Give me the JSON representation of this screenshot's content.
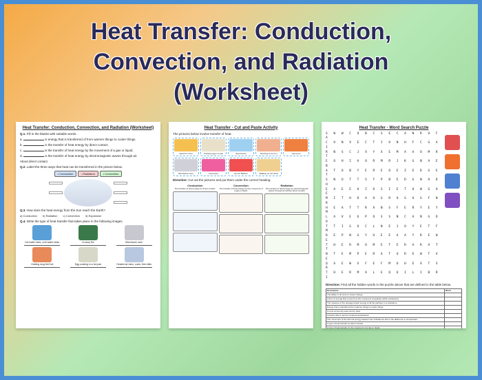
{
  "title_line1": "Heat Transfer: Conduction,",
  "title_line2": "Convection, and Radiation",
  "title_line3": "(Worksheet)",
  "colors": {
    "border": "#4a8fd4",
    "title_text": "#2a2a5a"
  },
  "sheet1": {
    "title": "Heat Transfer: Conduction, Convection, and Radiation (Worksheet)",
    "q1_label": "Q.1.",
    "q1_text": "Fill in the blanks with suitable words.",
    "q1_items": [
      "is energy that is transferred of from warmer things to cooler things.",
      "is the transfer of heat energy by direct contact.",
      "is the transfer of heat energy by the movement of a gas or liquid.",
      "is the transfer of heat energy by electromagnetic waves through air."
    ],
    "about": "About direct contact.",
    "q2_label": "Q.2.",
    "q2_text": "Label the three ways that heat can be transferred in the picture below.",
    "q2_boxes": [
      "Conduction",
      "Radiation",
      "Convection"
    ],
    "q3_label": "Q.3.",
    "q3_text": "How does the heat energy from the Sun reach the Earth?",
    "q3_options": [
      "a) Conduction",
      "b) Radiation",
      "c) Convection",
      "d) Expansion"
    ],
    "q4_label": "Q.4.",
    "q4_text": "Write the type of heat transfer that takes place in the following images.",
    "q4_items": [
      {
        "label": "hot water rises, cold water sinks",
        "color": "#5aa0d8"
      },
      {
        "label": "A camp fire",
        "color": "#3a7a4a"
      },
      {
        "label": "Microwave oven",
        "color": "#c8c8d0"
      },
      {
        "label": "Holding mug feel hot",
        "color": "#e88a5a"
      },
      {
        "label": "Egg cooking in a hot pan",
        "color": "#d8d8c8"
      },
      {
        "label": "Heated air rises, cools, then falls",
        "color": "#b8c8e0"
      }
    ]
  },
  "sheet2": {
    "title": "Heat Transfer - Cut and Paste Activity",
    "subtitle": "The pictures below involve transfer of heat.",
    "cut_items": [
      {
        "label": "Heat from Sun",
        "color": "#f5c050"
      },
      {
        "label": "Cooking egg in a pan",
        "color": "#e8e0c8"
      },
      {
        "label": "Sea breeze",
        "color": "#a0d0f0"
      },
      {
        "label": "Touching a hot iron",
        "color": "#f0b090"
      },
      {
        "label": "Camp fire",
        "color": "#f08040"
      },
      {
        "label": "Microwave oven",
        "color": "#d0d0d8"
      },
      {
        "label": "Lava lamp",
        "color": "#f060a0"
      },
      {
        "label": "Hot Air Balloon",
        "color": "#f05050"
      },
      {
        "label": "Walking on hot sand",
        "color": "#f0d090"
      },
      {
        "label": "",
        "color": "transparent"
      }
    ],
    "direction_label": "Direction:",
    "direction_text": "Cut out the pictures and put them under the correct heading.",
    "columns": [
      {
        "header": "Conduction",
        "sub": "The transfer of heat energy by direct contact."
      },
      {
        "header": "Convection",
        "sub": "The transfer of heat energy by the movement of a gas or liquid."
      },
      {
        "header": "Radiation",
        "sub": "The transfer of heat energy by electromagnetic waves through air without direct contact."
      }
    ]
  },
  "sheet3": {
    "title": "Heat Transfer - Word Search Puzzle",
    "grid": [
      "SWWCUBCSECANRUFA",
      "CONVECTIONHFCGAI",
      "RNSCJXYXEMAAOMRT",
      "EOHIAORMRJKGNAEB",
      "ATOBYEREOEZEDGET",
      "SNUTTSYPBEDGNODH",
      "EAEEHIOSIETOWGOE",
      "MITHDAOGROGUGFNR",
      "HEATTRANSFERYEYM",
      "LAVEUPOSSNCANGDO",
      "TTIGOCLNEJOYETFM",
      "DEPNGYUEEAAYREWE",
      "THERMOMETERARATT",
      "NTEMPERATUREWTVE",
      "QAEWXFEFMUHEATSR",
      "THERMALEQUILIBRI"
    ],
    "icons": [
      {
        "color": "#e05050"
      },
      {
        "color": "#f07030"
      },
      {
        "color": "#5080d0"
      },
      {
        "color": "#8050c0"
      }
    ],
    "direction_label": "Direction:",
    "direction_text": "Find all the hidden words in the puzzle above that are defined in the table below.",
    "table_headers": [
      "Description",
      "Word"
    ],
    "definitions": [
      "The ability to do work or cause change.",
      "A form of energy that comes from the movement of particles within substances.",
      "The measure of the average kinetic energy of all the particles in a substance.",
      "Energy that is transferred from warmer things to cooler things.",
      "A most commonly used unit for heat.",
      "A device that is used to measure temperature.",
      "The movement of the thermal energy between two substances due to the difference in temperature.",
      "A type of heat transfer by direct contact.",
      "A type of heat transfer by the movement of a gas or liquid.",
      "A type of heat transfer by electromagnetic waves without direct physical contact.",
      "A substance in which heat doesn't easily pass through it.",
      "A substance in which heat easily passes through it.",
      "The increase in the size of a substance when it gets hot.",
      "The decrease in the size of a substance when it gets cooler.",
      "The status when two or more substances having different temperatures reach the same temperature."
    ]
  }
}
